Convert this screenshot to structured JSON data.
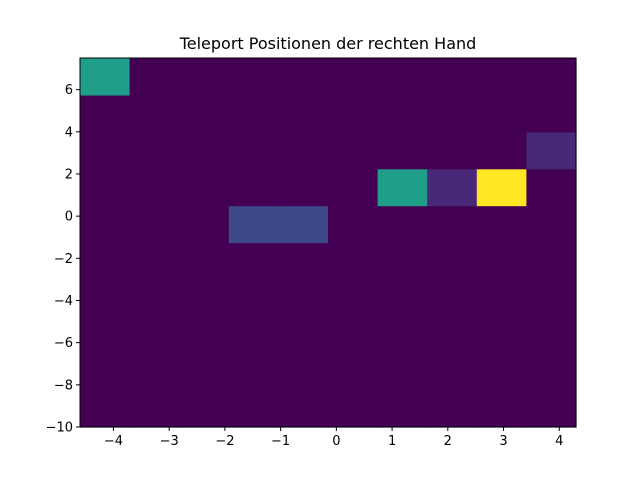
{
  "chart_data": {
    "type": "heatmap",
    "title": "Teleport Positionen der rechten Hand",
    "xlabel": "",
    "ylabel": "",
    "xlim": [
      -4.6,
      4.3
    ],
    "ylim": [
      -10,
      7.5
    ],
    "x_edges": [
      -4.6,
      -3.71,
      -2.82,
      -1.93,
      -1.04,
      -0.15,
      0.74,
      1.63,
      2.52,
      3.41,
      4.3
    ],
    "y_edges": [
      -10,
      -8.25,
      -6.5,
      -4.75,
      -3.0,
      -1.25,
      0.5,
      2.25,
      4.0,
      5.75,
      7.5
    ],
    "x_ticks": [
      -4,
      -3,
      -2,
      -1,
      0,
      1,
      2,
      3,
      4
    ],
    "y_ticks": [
      -10,
      -8,
      -6,
      -4,
      -2,
      0,
      2,
      4,
      6
    ],
    "counts": [
      [
        0,
        0,
        0,
        0,
        0,
        0,
        0,
        0,
        0,
        3
      ],
      [
        0,
        0,
        0,
        0,
        0,
        0,
        0,
        0,
        0,
        0
      ],
      [
        0,
        0,
        0,
        0,
        0,
        0,
        0,
        0,
        0,
        0
      ],
      [
        0,
        0,
        0,
        0,
        0,
        1,
        0,
        0,
        0,
        0
      ],
      [
        0,
        0,
        0,
        0,
        0,
        1,
        0,
        0,
        0,
        0
      ],
      [
        0,
        0,
        0,
        0,
        0,
        0,
        0,
        0,
        0,
        0
      ],
      [
        0,
        0,
        0,
        0,
        0,
        0,
        3,
        0,
        0,
        0
      ],
      [
        0,
        0,
        0,
        0,
        0,
        0,
        0.4,
        0,
        0,
        0
      ],
      [
        0,
        0,
        0,
        0,
        0,
        0,
        5,
        0,
        0,
        0
      ],
      [
        0,
        0,
        0,
        0,
        0,
        0,
        0,
        0.7,
        0,
        0
      ]
    ],
    "max_count": 5,
    "colormap": [
      "#440154",
      "#482878",
      "#3e4989",
      "#31688e",
      "#26828e",
      "#1f9e89",
      "#35b779",
      "#6ece58",
      "#b5de2b",
      "#fde725"
    ],
    "grid": false,
    "legend": "none"
  }
}
